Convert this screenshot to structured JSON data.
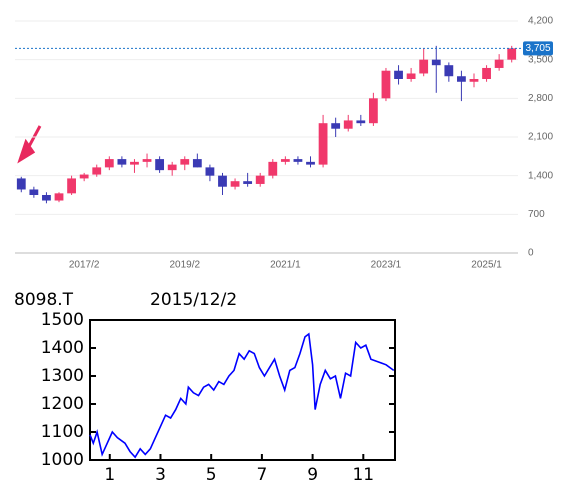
{
  "chart_data": [
    {
      "type": "candlestick",
      "categories": [
        null,
        null,
        null,
        null,
        null,
        "2017/2",
        null,
        null,
        null,
        null,
        null,
        null,
        null,
        "2019/2",
        null,
        null,
        null,
        null,
        null,
        null,
        null,
        "2021/1",
        null,
        null,
        null,
        null,
        null,
        null,
        null,
        "2023/1",
        null,
        null,
        null,
        null,
        null,
        null,
        null,
        "2025/1",
        null,
        null
      ],
      "open": [
        1350,
        1150,
        1050,
        950,
        1080,
        1350,
        1420,
        1550,
        1700,
        1600,
        1650,
        1700,
        1500,
        1600,
        1700,
        1550,
        1400,
        1200,
        1300,
        1250,
        1400,
        1650,
        1700,
        1650,
        1600,
        2350,
        2250,
        2400,
        2350,
        2800,
        3300,
        3150,
        3250,
        3500,
        3400,
        3200,
        3100,
        3150,
        3350,
        3500
      ],
      "high": [
        1380,
        1200,
        1100,
        1100,
        1400,
        1450,
        1600,
        1750,
        1750,
        1700,
        1800,
        1750,
        1650,
        1750,
        1800,
        1600,
        1450,
        1350,
        1450,
        1450,
        1700,
        1750,
        1750,
        1750,
        2500,
        2450,
        2500,
        2500,
        2900,
        3350,
        3400,
        3350,
        3700,
        3750,
        3450,
        3300,
        3250,
        3400,
        3600,
        3750
      ],
      "low": [
        1100,
        1000,
        900,
        920,
        1050,
        1300,
        1380,
        1500,
        1550,
        1450,
        1550,
        1450,
        1400,
        1500,
        1550,
        1300,
        1050,
        1150,
        1200,
        1200,
        1350,
        1600,
        1600,
        1550,
        1550,
        2100,
        2200,
        2300,
        2300,
        2750,
        3050,
        3100,
        3200,
        2900,
        3100,
        2750,
        3000,
        3100,
        3300,
        3450
      ],
      "close": [
        1150,
        1050,
        950,
        1080,
        1350,
        1420,
        1550,
        1700,
        1600,
        1650,
        1700,
        1500,
        1600,
        1700,
        1550,
        1400,
        1200,
        1300,
        1250,
        1400,
        1650,
        1700,
        1650,
        1600,
        2350,
        2250,
        2400,
        2350,
        2800,
        3300,
        3150,
        3250,
        3500,
        3400,
        3200,
        3100,
        3150,
        3350,
        3500,
        3705
      ],
      "up_color": "#f0386b",
      "down_color": "#3a3ab4",
      "ylim": [
        0,
        4200
      ],
      "yticks": [
        {
          "value": 0,
          "label": "0"
        },
        {
          "value": 700,
          "label": "700"
        },
        {
          "value": 1400,
          "label": "1,400"
        },
        {
          "value": 2100,
          "label": "2,100"
        },
        {
          "value": 2800,
          "label": "2,800"
        },
        {
          "value": 3500,
          "label": "3,500"
        },
        {
          "value": 4200,
          "label": "4,200"
        }
      ],
      "grid": true,
      "price_line": {
        "value": 3705,
        "label": "3,705",
        "color": "#1a73c9"
      }
    },
    {
      "type": "line",
      "title": "8098.T",
      "subtitle": "2015/12/2",
      "x": [
        0.22,
        0.35,
        0.5,
        0.7,
        0.9,
        1.1,
        1.3,
        1.6,
        1.8,
        2.0,
        2.2,
        2.4,
        2.6,
        2.8,
        3.0,
        3.2,
        3.4,
        3.6,
        3.8,
        4.0,
        4.1,
        4.3,
        4.5,
        4.7,
        4.9,
        5.1,
        5.3,
        5.5,
        5.7,
        5.9,
        6.1,
        6.3,
        6.5,
        6.7,
        6.9,
        7.1,
        7.3,
        7.5,
        7.7,
        7.9,
        8.1,
        8.3,
        8.5,
        8.7,
        8.85,
        9.0,
        9.1,
        9.3,
        9.5,
        9.7,
        9.9,
        10.1,
        10.3,
        10.5,
        10.7,
        10.9,
        11.1,
        11.3,
        11.6,
        11.9,
        12.2
      ],
      "series": [
        {
          "color": "#0000ff",
          "values": [
            1090,
            1060,
            1100,
            1020,
            1060,
            1100,
            1080,
            1060,
            1030,
            1010,
            1040,
            1020,
            1040,
            1080,
            1120,
            1160,
            1150,
            1180,
            1220,
            1200,
            1260,
            1240,
            1230,
            1260,
            1270,
            1250,
            1280,
            1270,
            1300,
            1320,
            1380,
            1360,
            1390,
            1380,
            1330,
            1300,
            1330,
            1360,
            1300,
            1250,
            1320,
            1330,
            1380,
            1440,
            1450,
            1340,
            1180,
            1270,
            1320,
            1290,
            1300,
            1220,
            1310,
            1300,
            1420,
            1400,
            1410,
            1360,
            1350,
            1340,
            1320
          ]
        }
      ],
      "xlim": [
        0.22,
        12.25
      ],
      "xticks": [
        1,
        3,
        5,
        7,
        9,
        11
      ],
      "ylim": [
        1000,
        1500
      ],
      "yticks": [
        1000,
        1100,
        1200,
        1300,
        1400,
        1500
      ]
    }
  ]
}
